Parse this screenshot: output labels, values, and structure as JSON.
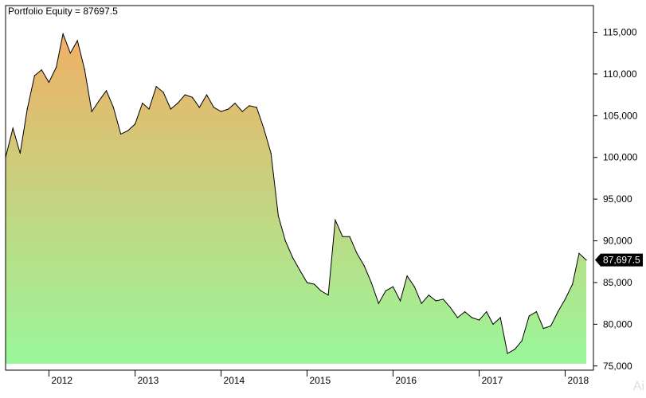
{
  "title": "Portfolio Equity = 87697.5",
  "watermark": "Ai",
  "colors": {
    "background": "#ffffff",
    "frame": "#000000",
    "line": "#000000",
    "fill_top": "#f0b066",
    "fill_bottom": "#9af79a",
    "last_value_tag": "#000000",
    "last_value_text": "#ffffff"
  },
  "chart_data": {
    "type": "area",
    "title": "Portfolio Equity = 87697.5",
    "xlabel": "",
    "ylabel": "",
    "grid": false,
    "x_tick_labels": [
      "2012",
      "2013",
      "2014",
      "2015",
      "2016",
      "2017",
      "2018"
    ],
    "y_tick_labels": [
      "75,000",
      "80,000",
      "85,000",
      "90,000",
      "95,000",
      "100,000",
      "105,000",
      "110,000",
      "115,000"
    ],
    "y_ticks": [
      75000,
      80000,
      85000,
      90000,
      95000,
      100000,
      105000,
      110000,
      115000
    ],
    "ylim": [
      74500,
      118200
    ],
    "xlim": [
      "2011-07-01",
      "2018-05-01"
    ],
    "last_value": 87697.5,
    "last_value_label": "87,697.5",
    "series": [
      {
        "values": [
          [
            "2011-07-01",
            100000
          ],
          [
            "2011-08-01",
            103500
          ],
          [
            "2011-09-01",
            100500
          ],
          [
            "2011-10-01",
            105800
          ],
          [
            "2011-11-01",
            109800
          ],
          [
            "2011-12-01",
            110500
          ],
          [
            "2012-01-01",
            109000
          ],
          [
            "2012-02-01",
            110800
          ],
          [
            "2012-03-01",
            114800
          ],
          [
            "2012-04-01",
            112500
          ],
          [
            "2012-05-01",
            114000
          ],
          [
            "2012-06-01",
            110500
          ],
          [
            "2012-07-01",
            105500
          ],
          [
            "2012-08-01",
            106800
          ],
          [
            "2012-09-01",
            108000
          ],
          [
            "2012-10-01",
            106000
          ],
          [
            "2012-11-01",
            102800
          ],
          [
            "2012-12-01",
            103200
          ],
          [
            "2013-01-01",
            104000
          ],
          [
            "2013-02-01",
            106500
          ],
          [
            "2013-03-01",
            105800
          ],
          [
            "2013-04-01",
            108500
          ],
          [
            "2013-05-01",
            107800
          ],
          [
            "2013-06-01",
            105800
          ],
          [
            "2013-07-01",
            106500
          ],
          [
            "2013-08-01",
            107500
          ],
          [
            "2013-09-01",
            107200
          ],
          [
            "2013-10-01",
            106000
          ],
          [
            "2013-11-01",
            107500
          ],
          [
            "2013-12-01",
            106000
          ],
          [
            "2014-01-01",
            105500
          ],
          [
            "2014-02-01",
            105800
          ],
          [
            "2014-03-01",
            106500
          ],
          [
            "2014-04-01",
            105500
          ],
          [
            "2014-05-01",
            106200
          ],
          [
            "2014-06-01",
            106000
          ],
          [
            "2014-07-01",
            103500
          ],
          [
            "2014-08-01",
            100500
          ],
          [
            "2014-09-01",
            93000
          ],
          [
            "2014-10-01",
            90000
          ],
          [
            "2014-11-01",
            88000
          ],
          [
            "2014-12-01",
            86500
          ],
          [
            "2015-01-01",
            85000
          ],
          [
            "2015-02-01",
            84800
          ],
          [
            "2015-03-01",
            84000
          ],
          [
            "2015-04-01",
            83500
          ],
          [
            "2015-05-01",
            92500
          ],
          [
            "2015-06-01",
            90500
          ],
          [
            "2015-07-01",
            90500
          ],
          [
            "2015-08-01",
            88500
          ],
          [
            "2015-09-01",
            87000
          ],
          [
            "2015-10-01",
            85000
          ],
          [
            "2015-11-01",
            82500
          ],
          [
            "2015-12-01",
            84000
          ],
          [
            "2016-01-01",
            84500
          ],
          [
            "2016-02-01",
            82800
          ],
          [
            "2016-03-01",
            85800
          ],
          [
            "2016-04-01",
            84500
          ],
          [
            "2016-05-01",
            82500
          ],
          [
            "2016-06-01",
            83500
          ],
          [
            "2016-07-01",
            82800
          ],
          [
            "2016-08-01",
            83000
          ],
          [
            "2016-09-01",
            82000
          ],
          [
            "2016-10-01",
            80800
          ],
          [
            "2016-11-01",
            81500
          ],
          [
            "2016-12-01",
            80800
          ],
          [
            "2017-01-01",
            80500
          ],
          [
            "2017-02-01",
            81500
          ],
          [
            "2017-03-01",
            80000
          ],
          [
            "2017-04-01",
            80800
          ],
          [
            "2017-05-01",
            76500
          ],
          [
            "2017-06-01",
            77000
          ],
          [
            "2017-07-01",
            78000
          ],
          [
            "2017-08-01",
            81000
          ],
          [
            "2017-09-01",
            81500
          ],
          [
            "2017-10-01",
            79500
          ],
          [
            "2017-11-01",
            79800
          ],
          [
            "2017-12-01",
            81500
          ],
          [
            "2018-01-01",
            83000
          ],
          [
            "2018-02-01",
            84800
          ],
          [
            "2018-03-01",
            88500
          ],
          [
            "2018-04-01",
            87697.5
          ]
        ]
      }
    ]
  }
}
